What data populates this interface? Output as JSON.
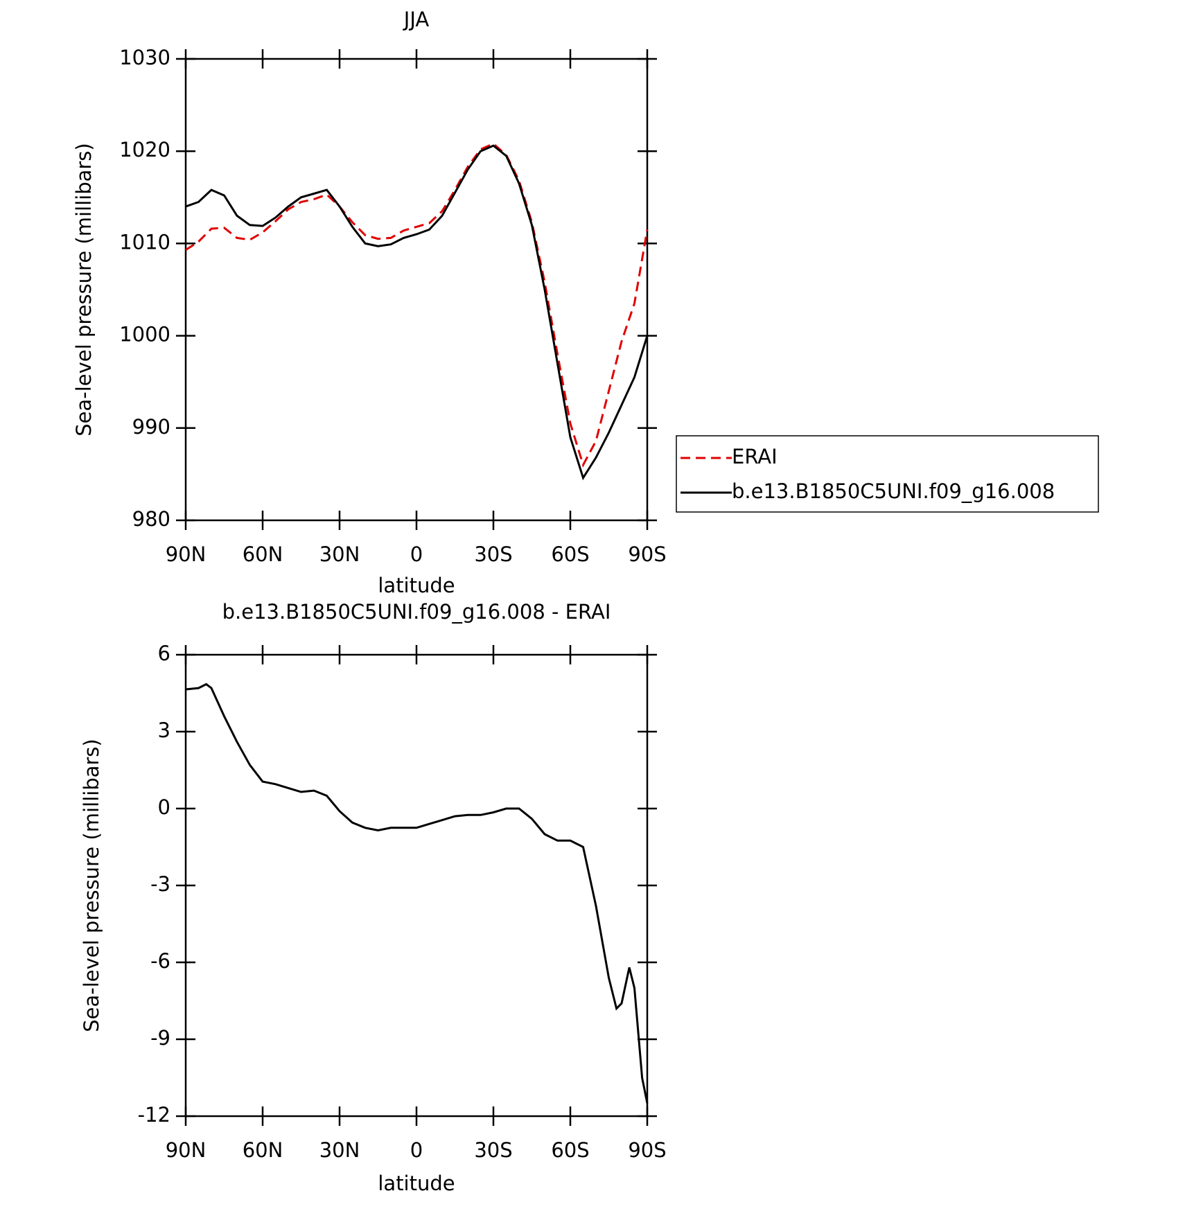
{
  "chart_data": [
    {
      "type": "line",
      "title": "JJA",
      "ylabel": "Sea-level pressure (millibars)",
      "xlabel": "latitude",
      "x": [
        90,
        85,
        80,
        75,
        70,
        65,
        60,
        55,
        50,
        45,
        40,
        35,
        30,
        25,
        20,
        15,
        10,
        5,
        0,
        -5,
        -10,
        -15,
        -20,
        -25,
        -30,
        -35,
        -40,
        -45,
        -50,
        -55,
        -60,
        -65,
        -70,
        -75,
        -80,
        -85,
        -90
      ],
      "series": [
        {
          "name": "ERAI",
          "color": "#e00000",
          "linestyle": "dashed",
          "values": [
            1009.3,
            1010.2,
            1011.6,
            1011.7,
            1010.6,
            1010.4,
            1011.2,
            1012.4,
            1013.7,
            1014.5,
            1014.8,
            1015.3,
            1014,
            1012.3,
            1010.9,
            1010.5,
            1010.6,
            1011.4,
            1011.8,
            1012.2,
            1013.5,
            1015.8,
            1018.3,
            1020.2,
            1020.8,
            1019.6,
            1016.8,
            1012.3,
            1005.8,
            998,
            990.5,
            986,
            988.6,
            994,
            999.4,
            1003.5,
            1011.5
          ]
        },
        {
          "name": "b.e13.B1850C5UNI.f09_g16.008",
          "color": "#000000",
          "linestyle": "solid",
          "values": [
            1014,
            1014.5,
            1015.8,
            1015.2,
            1013,
            1012,
            1011.9,
            1012.8,
            1014,
            1015,
            1015.4,
            1015.8,
            1014,
            1011.8,
            1010,
            1009.7,
            1009.9,
            1010.6,
            1011,
            1011.5,
            1013,
            1015.5,
            1018,
            1020,
            1020.6,
            1019.5,
            1016.5,
            1012,
            1005,
            997,
            989,
            984.6,
            986.8,
            989.5,
            992.5,
            995.5,
            1000
          ]
        }
      ],
      "xlim": [
        90,
        -90
      ],
      "xticks": [
        {
          "value": 90,
          "label": "90N"
        },
        {
          "value": 60,
          "label": "60N"
        },
        {
          "value": 30,
          "label": "30N"
        },
        0,
        {
          "value": -30,
          "label": "30S"
        },
        {
          "value": -60,
          "label": "60S"
        },
        {
          "value": -90,
          "label": "90S"
        }
      ],
      "ylim": [
        980,
        1030
      ],
      "yticks": [
        980,
        990,
        1000,
        1010,
        1020,
        1030
      ],
      "legend": "right"
    },
    {
      "type": "line",
      "title": "b.e13.B1850C5UNI.f09_g16.008 - ERAI",
      "ylabel": "Sea-level pressure (millibars)",
      "xlabel": "latitude",
      "x": [
        90,
        85,
        82,
        80,
        75,
        70,
        65,
        60,
        55,
        50,
        45,
        40,
        35,
        30,
        25,
        20,
        15,
        10,
        5,
        0,
        -5,
        -10,
        -15,
        -20,
        -25,
        -30,
        -35,
        -40,
        -45,
        -50,
        -55,
        -60,
        -65,
        -70,
        -75,
        -78,
        -80,
        -83,
        -85,
        -88,
        -90
      ],
      "values": [
        4.65,
        4.7,
        4.85,
        4.7,
        3.6,
        2.6,
        1.7,
        1.05,
        0.95,
        0.8,
        0.65,
        0.7,
        0.5,
        -0.1,
        -0.55,
        -0.75,
        -0.85,
        -0.75,
        -0.75,
        -0.75,
        -0.6,
        -0.45,
        -0.3,
        -0.25,
        -0.25,
        -0.15,
        0,
        0,
        -0.4,
        -1,
        -1.25,
        -1.25,
        -1.5,
        -3.8,
        -6.6,
        -7.8,
        -7.6,
        -6.2,
        -7,
        -10.5,
        -11.5
      ],
      "color": "#000000",
      "xlim": [
        90,
        -90
      ],
      "xticks": [
        {
          "value": 90,
          "label": "90N"
        },
        {
          "value": 60,
          "label": "60N"
        },
        {
          "value": 30,
          "label": "30N"
        },
        0,
        {
          "value": -30,
          "label": "30S"
        },
        {
          "value": -60,
          "label": "60S"
        },
        {
          "value": -90,
          "label": "90S"
        }
      ],
      "ylim": [
        -12,
        6
      ],
      "yticks": [
        -12,
        -9,
        -6,
        -3,
        0,
        3,
        6
      ]
    }
  ]
}
